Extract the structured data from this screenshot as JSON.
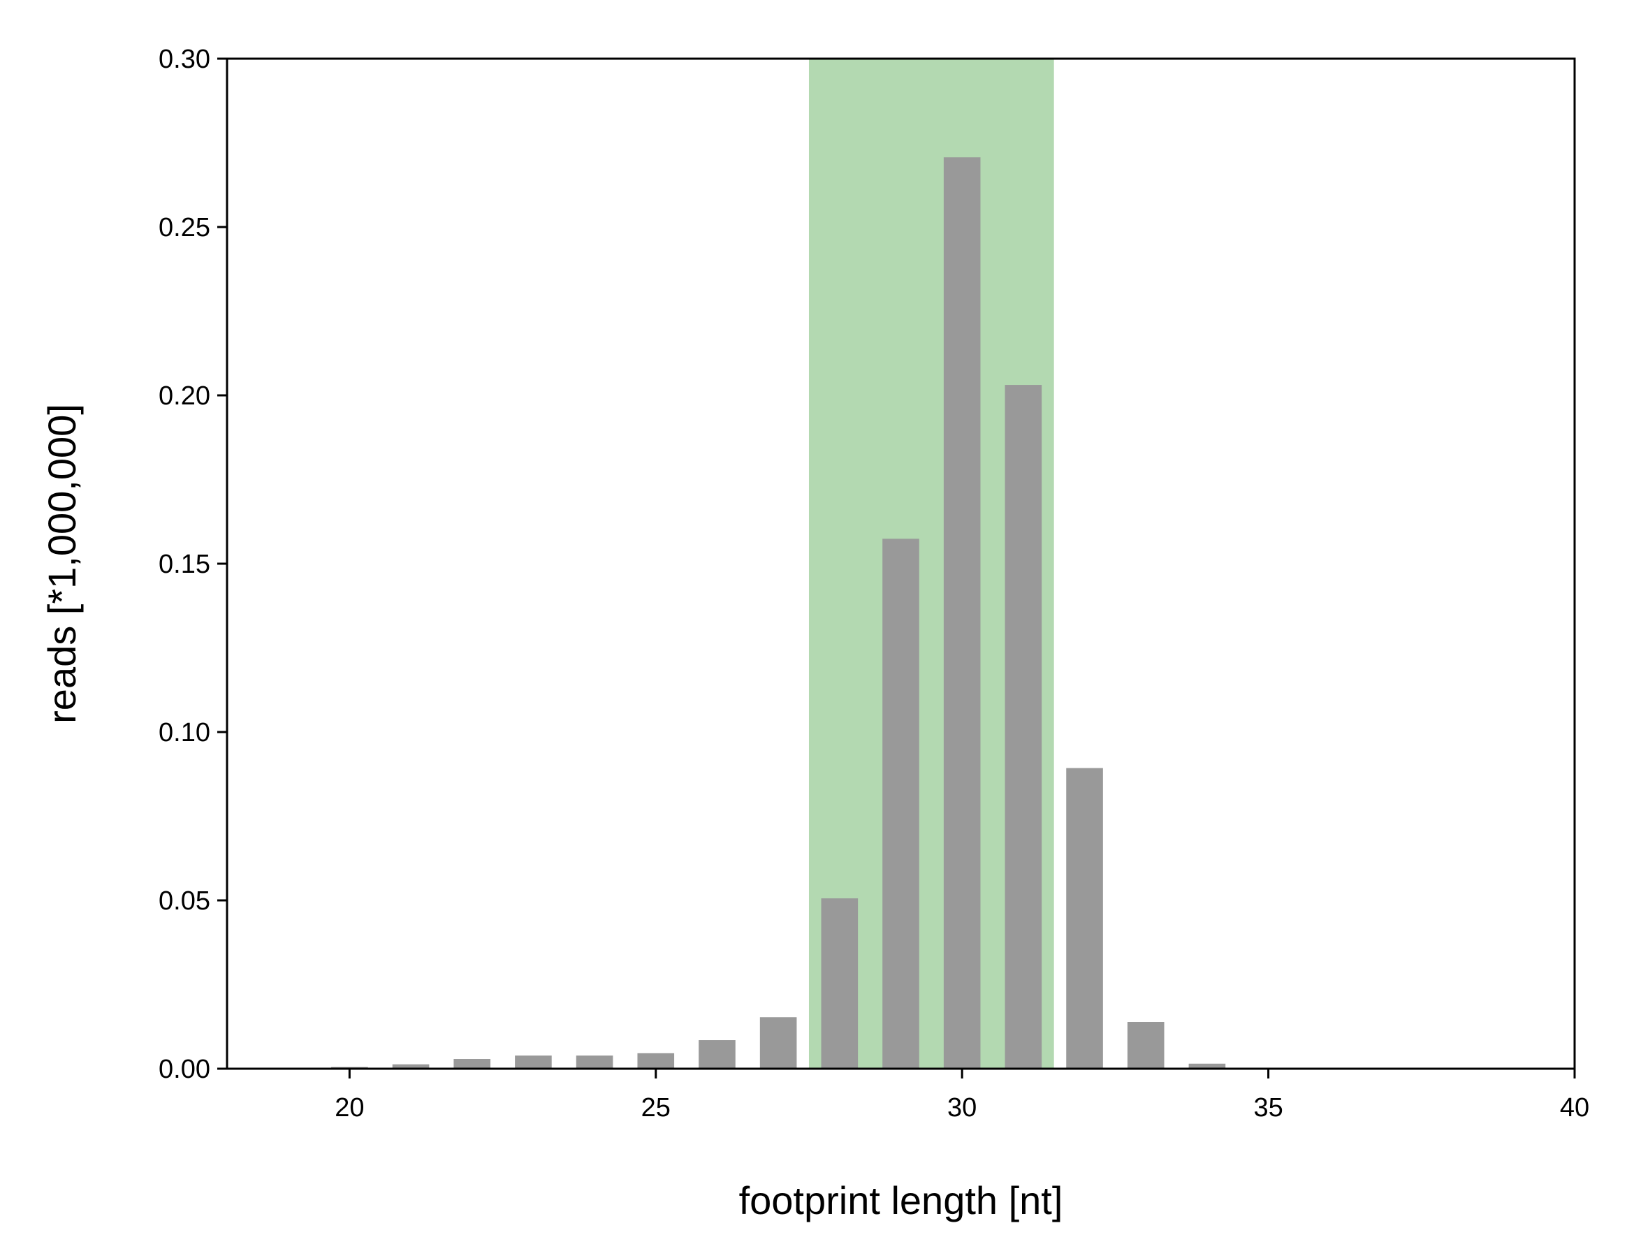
{
  "chart_data": {
    "type": "bar",
    "title": "",
    "xlabel": "footprint length [nt]",
    "ylabel": "reads [*1,000,000]",
    "xlim": [
      18,
      40
    ],
    "ylim": [
      0,
      0.3
    ],
    "x_ticks": [
      20,
      25,
      30,
      35,
      40
    ],
    "x_tick_labels": [
      "20",
      "25",
      "30",
      "35",
      "40"
    ],
    "y_ticks": [
      0,
      0.05,
      0.1,
      0.15,
      0.2,
      0.25,
      0.3
    ],
    "y_tick_labels": [
      "0.00",
      "0.05",
      "0.10",
      "0.15",
      "0.20",
      "0.25",
      "0.30"
    ],
    "grid": false,
    "highlight_range": [
      27.5,
      31.5
    ],
    "bar_width": 0.6,
    "x": [
      20,
      21,
      22,
      23,
      24,
      25,
      26,
      27,
      28,
      29,
      30,
      31,
      32,
      33,
      34
    ],
    "values": [
      0.0005,
      0.0013,
      0.0029,
      0.0039,
      0.0039,
      0.0046,
      0.0085,
      0.0153,
      0.0506,
      0.1574,
      0.2707,
      0.2031,
      0.0893,
      0.0139,
      0.0015
    ],
    "colors": {
      "bar": "#999999",
      "highlight": "#b3d9b1",
      "axis": "#000000"
    }
  }
}
